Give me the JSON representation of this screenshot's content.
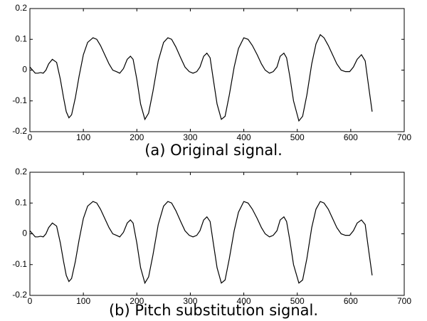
{
  "chart_data": [
    {
      "type": "line",
      "title": "(a) Original signal.",
      "x": [
        0,
        5,
        10,
        15,
        20,
        25,
        30,
        35,
        42,
        50,
        57,
        63,
        68,
        73,
        78,
        85,
        92,
        100,
        108,
        118,
        125,
        132,
        140,
        148,
        155,
        162,
        168,
        175,
        182,
        188,
        193,
        200,
        207,
        215,
        222,
        230,
        240,
        250,
        258,
        265,
        273,
        282,
        290,
        298,
        305,
        312,
        318,
        325,
        331,
        337,
        343,
        350,
        358,
        365,
        373,
        382,
        390,
        400,
        408,
        416,
        425,
        433,
        440,
        448,
        455,
        462,
        468,
        475,
        480,
        486,
        493,
        503,
        510,
        518,
        527,
        535,
        543,
        550,
        558,
        566,
        574,
        582,
        590,
        598,
        605,
        612,
        620,
        627,
        634,
        640
      ],
      "series": [
        {
          "color": "#000000",
          "values": [
            0.01,
            0.0,
            -0.01,
            -0.01,
            -0.008,
            -0.01,
            0.0,
            0.02,
            0.035,
            0.025,
            -0.03,
            -0.09,
            -0.135,
            -0.155,
            -0.145,
            -0.09,
            -0.02,
            0.05,
            0.09,
            0.105,
            0.1,
            0.08,
            0.05,
            0.02,
            0.0,
            -0.005,
            -0.01,
            0.005,
            0.035,
            0.045,
            0.035,
            -0.03,
            -0.11,
            -0.16,
            -0.14,
            -0.07,
            0.03,
            0.09,
            0.105,
            0.1,
            0.075,
            0.04,
            0.01,
            -0.005,
            -0.01,
            -0.005,
            0.01,
            0.045,
            0.055,
            0.04,
            -0.03,
            -0.11,
            -0.16,
            -0.15,
            -0.08,
            0.01,
            0.07,
            0.105,
            0.1,
            0.08,
            0.05,
            0.02,
            0.0,
            -0.01,
            -0.005,
            0.01,
            0.045,
            0.055,
            0.04,
            -0.02,
            -0.1,
            -0.165,
            -0.15,
            -0.08,
            0.02,
            0.085,
            0.115,
            0.105,
            0.08,
            0.05,
            0.02,
            0.0,
            -0.005,
            -0.005,
            0.01,
            0.035,
            0.05,
            0.03,
            -0.06,
            -0.135
          ]
        }
      ],
      "xlim": [
        0,
        700
      ],
      "xticks": [
        0,
        100,
        200,
        300,
        400,
        500,
        600,
        700
      ],
      "ylim": [
        -0.2,
        0.2
      ],
      "yticks": [
        -0.2,
        -0.1,
        0,
        0.1,
        0.2
      ]
    },
    {
      "type": "line",
      "title": "(b) Pitch substitution signal.",
      "x": [
        0,
        5,
        10,
        15,
        20,
        25,
        30,
        35,
        42,
        50,
        57,
        63,
        68,
        73,
        78,
        85,
        92,
        100,
        108,
        118,
        125,
        132,
        140,
        148,
        155,
        162,
        168,
        175,
        182,
        188,
        193,
        200,
        207,
        215,
        222,
        230,
        240,
        250,
        258,
        265,
        273,
        282,
        290,
        298,
        305,
        312,
        318,
        325,
        331,
        337,
        343,
        350,
        358,
        365,
        373,
        382,
        390,
        400,
        408,
        416,
        425,
        433,
        440,
        448,
        455,
        462,
        468,
        475,
        480,
        486,
        493,
        503,
        510,
        518,
        527,
        535,
        543,
        550,
        558,
        566,
        574,
        582,
        590,
        598,
        605,
        612,
        620,
        627,
        634,
        640
      ],
      "series": [
        {
          "color": "#000000",
          "values": [
            0.01,
            0.0,
            -0.01,
            -0.01,
            -0.008,
            -0.01,
            0.0,
            0.02,
            0.035,
            0.025,
            -0.03,
            -0.09,
            -0.135,
            -0.155,
            -0.145,
            -0.09,
            -0.02,
            0.05,
            0.09,
            0.105,
            0.1,
            0.08,
            0.05,
            0.02,
            0.0,
            -0.005,
            -0.01,
            0.005,
            0.035,
            0.045,
            0.035,
            -0.03,
            -0.11,
            -0.16,
            -0.14,
            -0.07,
            0.03,
            0.09,
            0.105,
            0.1,
            0.075,
            0.04,
            0.01,
            -0.005,
            -0.01,
            -0.005,
            0.01,
            0.045,
            0.055,
            0.04,
            -0.03,
            -0.11,
            -0.16,
            -0.15,
            -0.08,
            0.01,
            0.07,
            0.105,
            0.1,
            0.08,
            0.05,
            0.02,
            0.0,
            -0.01,
            -0.005,
            0.01,
            0.045,
            0.055,
            0.04,
            -0.02,
            -0.1,
            -0.16,
            -0.15,
            -0.08,
            0.02,
            0.08,
            0.105,
            0.1,
            0.08,
            0.05,
            0.02,
            0.0,
            -0.005,
            -0.005,
            0.01,
            0.035,
            0.045,
            0.03,
            -0.06,
            -0.135
          ]
        }
      ],
      "xlim": [
        0,
        700
      ],
      "xticks": [
        0,
        100,
        200,
        300,
        400,
        500,
        600,
        700
      ],
      "ylim": [
        -0.2,
        0.2
      ],
      "yticks": [
        -0.2,
        -0.1,
        0,
        0.1,
        0.2
      ]
    }
  ]
}
